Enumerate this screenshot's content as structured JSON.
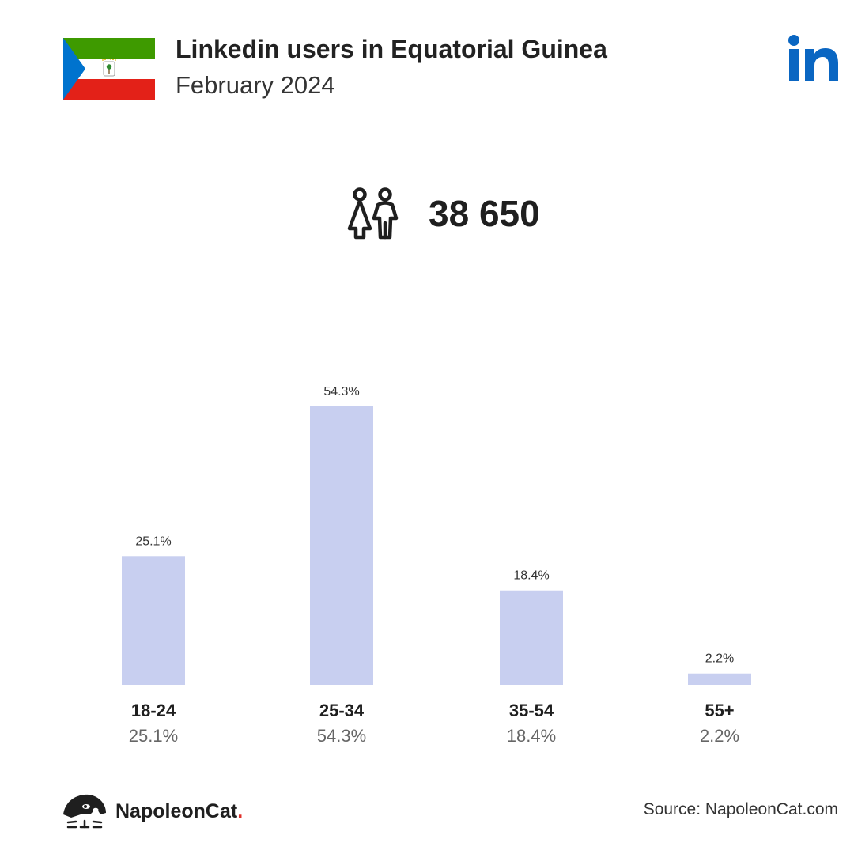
{
  "header": {
    "title": "Linkedin users in Equatorial Guinea",
    "subtitle": "February 2024"
  },
  "flag": {
    "name": "equatorial-guinea-flag",
    "colors": {
      "green": "#3e9a00",
      "white": "#ffffff",
      "red": "#e32118",
      "blue": "#0073ce"
    }
  },
  "brand_icon": "linkedin-logo-icon",
  "total": {
    "icon": "users-icon",
    "value": "38 650"
  },
  "chart_data": {
    "type": "bar",
    "categories": [
      "18-24",
      "25-34",
      "35-54",
      "55+"
    ],
    "values": [
      25.1,
      54.3,
      18.4,
      2.2
    ],
    "data_labels": [
      "25.1%",
      "54.3%",
      "18.4%",
      "2.2%"
    ],
    "bar_color": "#c8cff0",
    "grid": false,
    "legend": "none"
  },
  "footer": {
    "brand_name": "NapoleonCat",
    "brand_dot": ".",
    "source": "Source: NapoleonCat.com"
  }
}
